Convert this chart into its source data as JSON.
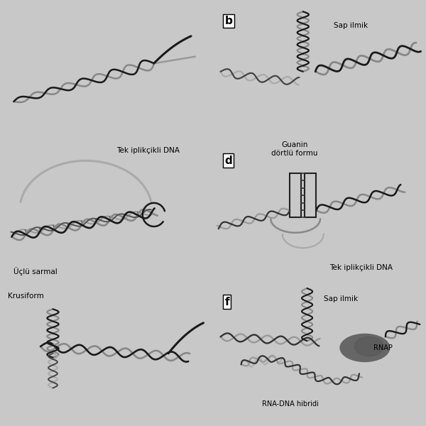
{
  "bg_color": "#c8c8c8",
  "panel_bg": "#d8d8d8",
  "dark": "#1a1a1a",
  "dark2": "#333333",
  "mid": "#777777",
  "light": "#aaaaaa",
  "vlight": "#cccccc",
  "labels": {
    "b": "b",
    "d": "d",
    "f": "f",
    "sap_ilmik_b": "Sap ilmik",
    "tek_iplik_c": "Tek iplikçikli DNA",
    "uclu_sarmal": "Üçlü sarmal",
    "guanin": "Guanin\ndörtlü formu",
    "tek_iplik_d": "Tek iplikçikli DNA",
    "krusiform": "Krusiform",
    "sap_ilmik_f": "Sap ilmik",
    "rnap": "RNAP",
    "rna_dna": "RNA-DNA hibridi"
  }
}
